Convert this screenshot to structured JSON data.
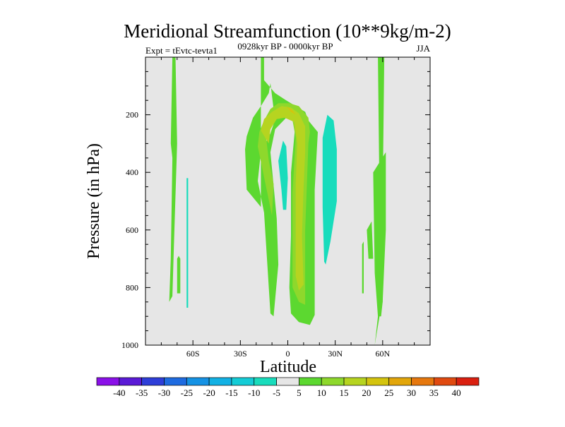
{
  "chart_data": {
    "type": "heatmap",
    "title": "Meridional Streamfunction (10**9kg/m-2)",
    "left_label": "Expt = tEvtc-tevta1",
    "center_label": "0928kyr BP - 0000kyr BP",
    "right_label": "JJA",
    "xlabel": "Latitude",
    "ylabel": "Pressure (in hPa)",
    "xlim": [
      -90,
      90
    ],
    "ylim": [
      1000,
      0
    ],
    "x_ticks": [
      {
        "value": -60,
        "label": "60S"
      },
      {
        "value": -30,
        "label": "30S"
      },
      {
        "value": 0,
        "label": "0"
      },
      {
        "value": 30,
        "label": "30N"
      },
      {
        "value": 60,
        "label": "60N"
      }
    ],
    "y_ticks": [
      {
        "value": 200,
        "label": "200"
      },
      {
        "value": 400,
        "label": "400"
      },
      {
        "value": 600,
        "label": "600"
      },
      {
        "value": 800,
        "label": "800"
      },
      {
        "value": 1000,
        "label": "1000"
      }
    ],
    "background_color": "#e6e6e6",
    "colorbar": {
      "labels": [
        "-40",
        "-35",
        "-30",
        "-25",
        "-20",
        "-15",
        "-10",
        "-5",
        "5",
        "10",
        "15",
        "20",
        "25",
        "30",
        "35",
        "40"
      ],
      "colors": [
        "#8a10e8",
        "#5a1ad6",
        "#2e3ed8",
        "#1e6be0",
        "#1592e4",
        "#12b1e4",
        "#14ccd6",
        "#18dcbc",
        "#e6e6e6",
        "#5cd830",
        "#8ed82c",
        "#b6d420",
        "#d4c40e",
        "#e2a60a",
        "#e6780e",
        "#e04a10",
        "#da2010"
      ]
    },
    "regions": [
      {
        "level": 5,
        "color": "#5cd830",
        "points": [
          [
            -17,
            1000
          ],
          [
            -17,
            520
          ],
          [
            -26,
            460
          ],
          [
            -27,
            320
          ],
          [
            -26,
            275
          ],
          [
            -22,
            210
          ],
          [
            -17,
            170
          ],
          [
            -12,
            125
          ],
          [
            -11,
            90
          ],
          [
            -9,
            180
          ],
          [
            -7,
            200
          ],
          [
            -11,
            265
          ],
          [
            -17,
            330
          ],
          [
            -19,
            430
          ],
          [
            -15,
            540
          ],
          [
            -11,
            890
          ],
          [
            -9,
            900
          ],
          [
            -6,
            720
          ],
          [
            -7,
            560
          ],
          [
            -11,
            330
          ],
          [
            -8,
            250
          ],
          [
            -1,
            210
          ],
          [
            5,
            220
          ],
          [
            2,
            400
          ],
          [
            2,
            620
          ],
          [
            1,
            800
          ],
          [
            2,
            890
          ],
          [
            7,
            920
          ],
          [
            14,
            930
          ],
          [
            17,
            895
          ],
          [
            17,
            600
          ],
          [
            17,
            460
          ],
          [
            19,
            260
          ],
          [
            13,
            220
          ],
          [
            11,
            190
          ],
          [
            5,
            170
          ],
          [
            -1,
            150
          ],
          [
            -8,
            125
          ],
          [
            -15,
            80
          ],
          [
            -15,
            0
          ],
          [
            -17,
            0
          ]
        ]
      },
      {
        "level": 10,
        "color": "#8ed82c",
        "points": [
          [
            -10,
            550
          ],
          [
            -13,
            470
          ],
          [
            -19,
            310
          ],
          [
            -18,
            260
          ],
          [
            -15,
            220
          ],
          [
            -11,
            180
          ],
          [
            -6,
            160
          ],
          [
            1,
            160
          ],
          [
            7,
            170
          ],
          [
            13,
            210
          ],
          [
            14,
            260
          ],
          [
            13,
            300
          ],
          [
            12,
            450
          ],
          [
            11,
            600
          ],
          [
            11,
            770
          ],
          [
            11,
            860
          ],
          [
            7,
            850
          ],
          [
            3,
            800
          ],
          [
            3,
            640
          ],
          [
            3,
            470
          ],
          [
            5,
            280
          ],
          [
            3,
            220
          ],
          [
            -2,
            200
          ],
          [
            -8,
            210
          ],
          [
            -14,
            265
          ],
          [
            -12,
            360
          ],
          [
            -9,
            440
          ]
        ]
      },
      {
        "level": 15,
        "color": "#b6d420",
        "points": [
          [
            -12,
            300
          ],
          [
            -17,
            255
          ],
          [
            -15,
            215
          ],
          [
            -10,
            190
          ],
          [
            -4,
            170
          ],
          [
            2,
            175
          ],
          [
            7,
            195
          ],
          [
            11,
            240
          ],
          [
            11,
            330
          ],
          [
            10,
            450
          ],
          [
            9,
            620
          ],
          [
            10,
            790
          ],
          [
            7,
            810
          ],
          [
            5,
            760
          ],
          [
            5,
            600
          ],
          [
            5,
            440
          ],
          [
            6,
            300
          ],
          [
            4,
            225
          ],
          [
            -2,
            210
          ],
          [
            -7,
            215
          ],
          [
            -11,
            250
          ]
        ]
      },
      {
        "level": 20,
        "color": "#d4c40e",
        "points": [
          [
            5,
            200
          ],
          [
            3,
            185
          ],
          [
            -1,
            170
          ],
          [
            2,
            190
          ]
        ]
      },
      {
        "level": 5,
        "color": "#5cd830",
        "points": [
          [
            -75,
            850
          ],
          [
            -74,
            700
          ],
          [
            -73,
            350
          ],
          [
            -74,
            300
          ],
          [
            -73,
            0
          ],
          [
            -71,
            0
          ],
          [
            -70,
            300
          ],
          [
            -72,
            650
          ],
          [
            -73,
            830
          ]
        ]
      },
      {
        "level": 5,
        "color": "#5cd830",
        "points": [
          [
            -70,
            820
          ],
          [
            -70,
            700
          ],
          [
            -69,
            690
          ],
          [
            -68,
            700
          ],
          [
            -68,
            820
          ]
        ]
      },
      {
        "level": 5,
        "color": "#5cd830",
        "points": [
          [
            55,
            1000
          ],
          [
            58,
            850
          ],
          [
            58,
            500
          ],
          [
            57,
            0
          ],
          [
            61,
            0
          ],
          [
            60,
            500
          ],
          [
            60,
            850
          ],
          [
            58,
            900
          ]
        ]
      },
      {
        "level": 5,
        "color": "#5cd830",
        "points": [
          [
            57,
            900
          ],
          [
            55,
            750
          ],
          [
            54,
            400
          ],
          [
            62,
            330
          ],
          [
            62,
            600
          ],
          [
            60,
            850
          ],
          [
            59,
            900
          ]
        ]
      },
      {
        "level": 5,
        "color": "#5cd830",
        "points": [
          [
            51,
            700
          ],
          [
            50,
            600
          ],
          [
            53,
            570
          ],
          [
            54,
            700
          ]
        ]
      },
      {
        "level": 5,
        "color": "#5cd830",
        "points": [
          [
            47,
            820
          ],
          [
            47,
            650
          ],
          [
            48,
            640
          ],
          [
            48,
            820
          ]
        ]
      },
      {
        "level": -5,
        "color": "#18dcbc",
        "points": [
          [
            -4,
            460
          ],
          [
            -6,
            360
          ],
          [
            -3,
            290
          ],
          [
            -1,
            310
          ],
          [
            0,
            420
          ],
          [
            -1,
            530
          ],
          [
            -3,
            530
          ]
        ]
      },
      {
        "level": -5,
        "color": "#18dcbc",
        "points": [
          [
            23,
            710
          ],
          [
            22,
            520
          ],
          [
            22,
            280
          ],
          [
            25,
            200
          ],
          [
            29,
            220
          ],
          [
            31,
            320
          ],
          [
            31,
            500
          ],
          [
            27,
            640
          ],
          [
            24,
            720
          ]
        ]
      },
      {
        "level": -5,
        "color": "#18dcbc",
        "points": [
          [
            -64,
            870
          ],
          [
            -64,
            700
          ],
          [
            -64,
            420
          ],
          [
            -63,
            420
          ],
          [
            -63,
            700
          ],
          [
            -63,
            870
          ]
        ]
      }
    ]
  }
}
